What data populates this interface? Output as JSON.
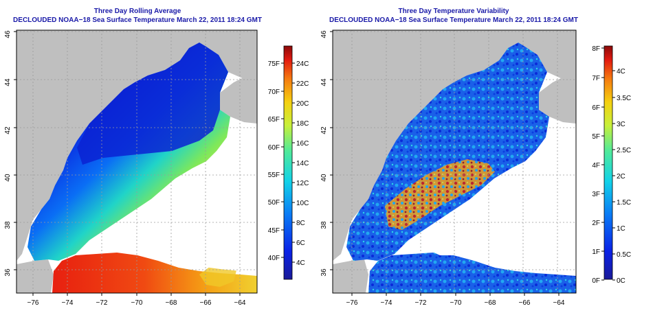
{
  "left_panel": {
    "title": "Three Day Rolling Average",
    "subtitle": "DECLOUDED NOAA−18 Sea Surface Temperature March 22, 2011 18:24 GMT",
    "colorbar": {
      "f_labels": [
        "75F",
        "70F",
        "65F",
        "60F",
        "55F",
        "50F",
        "45F",
        "40F"
      ],
      "c_labels": [
        "24C",
        "22C",
        "20C",
        "18C",
        "16C",
        "14C",
        "12C",
        "10C",
        "8C",
        "6C",
        "4C"
      ]
    }
  },
  "right_panel": {
    "title": "Three Day Temperature Variability",
    "subtitle": "DECLOUDED NOAA−18 Sea Surface Temperature March 22, 2011 18:24 GMT",
    "colorbar": {
      "f_labels": [
        "8F",
        "7F",
        "6F",
        "5F",
        "4F",
        "3F",
        "2F",
        "1F",
        "0F"
      ],
      "c_labels": [
        "4C",
        "3.5C",
        "3C",
        "2.5C",
        "2C",
        "1.5C",
        "1C",
        "0.5C",
        "0C"
      ]
    }
  },
  "lat_labels": [
    "46",
    "44",
    "42",
    "40",
    "38",
    "36"
  ],
  "lon_labels": [
    "−76",
    "−74",
    "−72",
    "−70",
    "−68",
    "−66",
    "−64"
  ],
  "colors": {
    "land": "#bfbfbf",
    "title": "#1a1aa8",
    "frame": "#000000"
  }
}
